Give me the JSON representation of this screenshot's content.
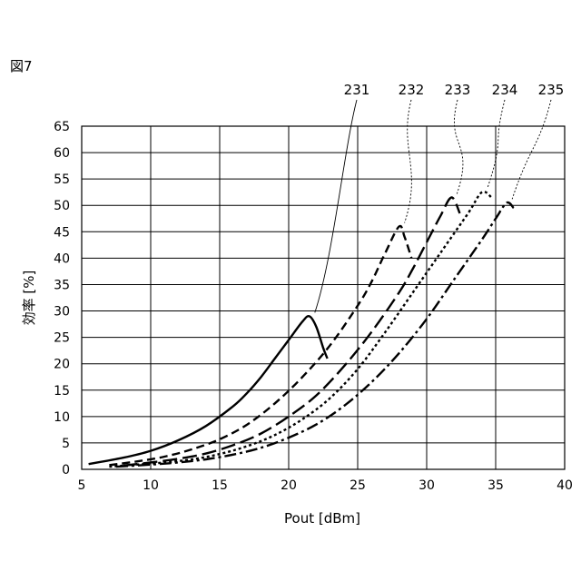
{
  "figure_label": "図7",
  "chart_data": {
    "type": "line",
    "title": "",
    "xlabel": "Pout [dBm]",
    "ylabel": "効率 [%]",
    "xlim": [
      5,
      40
    ],
    "ylim": [
      0,
      65
    ],
    "xticks": [
      5,
      10,
      15,
      20,
      25,
      30,
      35,
      40
    ],
    "yticks": [
      0,
      5,
      10,
      15,
      20,
      25,
      30,
      35,
      40,
      45,
      50,
      55,
      60,
      65
    ],
    "grid": true,
    "legend": "callout labels above plot",
    "series": [
      {
        "name": "231",
        "style": "solid",
        "x": [
          5.5,
          8,
          10,
          12,
          14,
          16,
          17,
          18,
          19,
          20,
          21,
          21.5,
          22,
          22.5,
          22.8
        ],
        "y": [
          1,
          2.2,
          3.5,
          5.5,
          8.2,
          12,
          14.5,
          17.5,
          21,
          24.5,
          28,
          29,
          27,
          23,
          21
        ]
      },
      {
        "name": "232",
        "style": "dash-medium",
        "x": [
          7,
          9,
          11,
          13,
          15,
          17,
          19,
          21,
          23,
          25,
          26,
          27,
          28,
          28.4,
          28.9
        ],
        "y": [
          0.8,
          1.5,
          2.4,
          3.8,
          5.7,
          8.5,
          12.5,
          17.5,
          23.5,
          31,
          35.5,
          41,
          46,
          44,
          40
        ]
      },
      {
        "name": "233",
        "style": "dash-long",
        "x": [
          8,
          10,
          12,
          14,
          16,
          18,
          20,
          22,
          24,
          26,
          28,
          29,
          30,
          31,
          31.8,
          32.4
        ],
        "y": [
          0.7,
          1.3,
          2.0,
          3.0,
          4.6,
          6.8,
          10,
          14,
          19.5,
          26,
          33.5,
          38,
          43,
          48,
          51.5,
          48.5
        ]
      },
      {
        "name": "234",
        "style": "dotted",
        "x": [
          7,
          9,
          11,
          13,
          15,
          17,
          19,
          21,
          23,
          25,
          27,
          29,
          31,
          33,
          34,
          34.7
        ],
        "y": [
          0.5,
          0.9,
          1.3,
          1.9,
          2.9,
          4.4,
          6.5,
          9.5,
          13.5,
          19,
          26,
          33.5,
          41,
          48.5,
          52.5,
          51.5
        ]
      },
      {
        "name": "235",
        "style": "dash-dot",
        "x": [
          7.5,
          10,
          12,
          14,
          16,
          18,
          20,
          22,
          24,
          26,
          28,
          30,
          32,
          34,
          35,
          35.8,
          36.3
        ],
        "y": [
          0.5,
          0.9,
          1.3,
          1.9,
          2.8,
          4.1,
          6,
          8.5,
          12,
          16.5,
          22,
          28.5,
          36,
          43.5,
          47.5,
          50.5,
          49.5
        ]
      }
    ]
  }
}
